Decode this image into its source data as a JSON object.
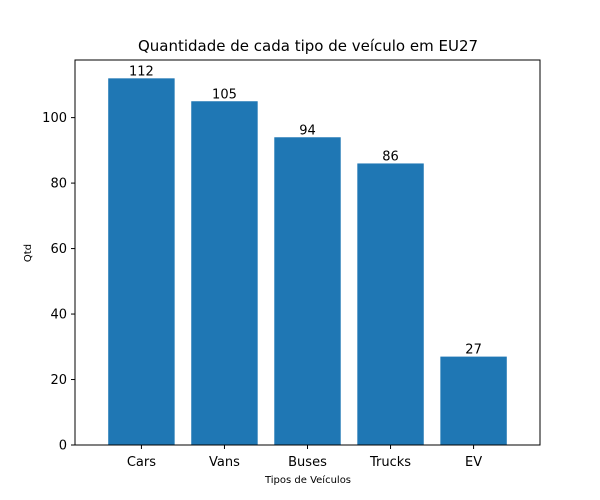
{
  "chart_data": {
    "type": "bar",
    "title": "Quantidade de cada tipo de veículo em EU27",
    "xlabel": "Tipos de Veículos",
    "ylabel": "Qtd",
    "categories": [
      "Cars",
      "Vans",
      "Buses",
      "Trucks",
      "EV"
    ],
    "values": [
      112,
      105,
      94,
      86,
      27
    ],
    "data_labels": [
      "112",
      "105",
      "94",
      "86",
      "27"
    ],
    "ylim": [
      0,
      117.6
    ],
    "yticks": [
      0,
      20,
      40,
      60,
      80,
      100
    ],
    "ytick_labels": [
      "0",
      "20",
      "40",
      "60",
      "80",
      "100"
    ],
    "bar_color": "#1f77b4",
    "grid": false,
    "legend": "none"
  }
}
